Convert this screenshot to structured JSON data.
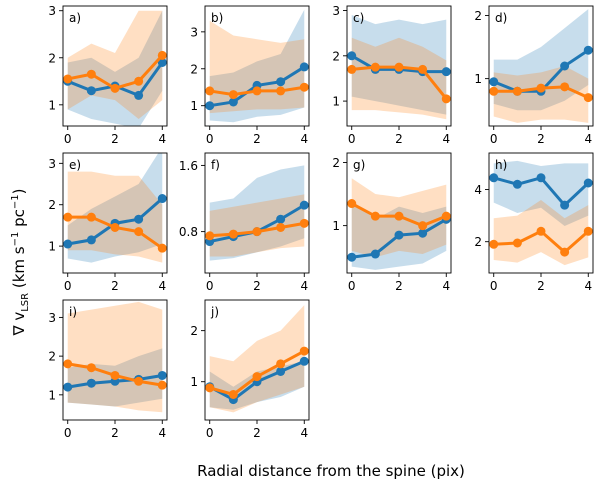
{
  "figure": {
    "ylabel_main": "∇ v",
    "ylabel_sub": "LSR",
    "ylabel_units": " (km s",
    "ylabel_exp1": "−1",
    "ylabel_mid": " pc",
    "ylabel_exp2": "−1",
    "ylabel_end": ")",
    "xlabel": "Radial distance from the spine (pix)",
    "colors": {
      "blue": "#1f77b4",
      "orange": "#ff7f0e"
    }
  },
  "chart_data": [
    {
      "panel": "a)",
      "type": "line",
      "x": [
        0,
        1,
        2,
        3,
        4
      ],
      "xticks": [
        0,
        2,
        4
      ],
      "ylim": [
        0.55,
        3.1
      ],
      "yticks": [
        1,
        2,
        3
      ],
      "series": [
        {
          "color": "blue",
          "values": [
            1.5,
            1.3,
            1.4,
            1.2,
            1.9
          ],
          "band_low": [
            0.9,
            0.7,
            0.6,
            0.5,
            1.3
          ],
          "band_high": [
            1.9,
            2.0,
            1.7,
            2.0,
            3.0
          ]
        },
        {
          "color": "orange",
          "values": [
            1.55,
            1.65,
            1.35,
            1.5,
            2.05
          ],
          "band_low": [
            0.9,
            1.2,
            1.1,
            0.7,
            1.1
          ],
          "band_high": [
            2.0,
            2.3,
            2.1,
            3.0,
            3.0
          ]
        }
      ]
    },
    {
      "panel": "b)",
      "type": "line",
      "x": [
        0,
        1,
        2,
        3,
        4
      ],
      "xticks": [
        0,
        2,
        4
      ],
      "ylim": [
        0.45,
        3.7
      ],
      "yticks": [
        1,
        2,
        3
      ],
      "series": [
        {
          "color": "blue",
          "values": [
            1.0,
            1.1,
            1.55,
            1.65,
            2.05
          ],
          "band_low": [
            0.6,
            0.55,
            0.7,
            0.75,
            0.95
          ],
          "band_high": [
            1.8,
            1.9,
            2.2,
            2.4,
            3.6
          ]
        },
        {
          "color": "orange",
          "values": [
            1.4,
            1.3,
            1.4,
            1.4,
            1.5
          ],
          "band_low": [
            0.8,
            0.85,
            0.9,
            0.9,
            0.95
          ],
          "band_high": [
            3.3,
            2.9,
            2.8,
            2.7,
            2.8
          ]
        }
      ]
    },
    {
      "panel": "c)",
      "type": "line",
      "x": [
        0,
        1,
        2,
        3,
        4
      ],
      "xticks": [
        0,
        2,
        4
      ],
      "ylim": [
        0.45,
        3.1
      ],
      "yticks": [
        1,
        2,
        3
      ],
      "series": [
        {
          "color": "blue",
          "values": [
            2.0,
            1.7,
            1.7,
            1.65,
            1.65
          ],
          "band_low": [
            1.1,
            1.0,
            0.9,
            0.8,
            0.7
          ],
          "band_high": [
            2.9,
            2.7,
            2.8,
            2.7,
            2.8
          ]
        },
        {
          "color": "orange",
          "values": [
            1.7,
            1.75,
            1.75,
            1.7,
            1.05
          ],
          "band_low": [
            0.8,
            0.8,
            0.75,
            0.7,
            0.6
          ],
          "band_high": [
            2.4,
            2.2,
            2.4,
            2.2,
            1.9
          ]
        }
      ]
    },
    {
      "panel": "d)",
      "type": "line",
      "x": [
        0,
        1,
        2,
        3,
        4
      ],
      "xticks": [
        0,
        2,
        4
      ],
      "ylim": [
        0.25,
        2.15
      ],
      "yticks": [
        1,
        2
      ],
      "series": [
        {
          "color": "blue",
          "values": [
            0.95,
            0.8,
            0.8,
            1.2,
            1.45
          ],
          "band_low": [
            0.6,
            0.5,
            0.5,
            0.65,
            0.9
          ],
          "band_high": [
            1.3,
            1.3,
            1.5,
            1.8,
            2.1
          ]
        },
        {
          "color": "orange",
          "values": [
            0.8,
            0.8,
            0.85,
            0.87,
            0.7
          ],
          "band_low": [
            0.4,
            0.3,
            0.35,
            0.35,
            0.3
          ],
          "band_high": [
            1.1,
            1.05,
            1.1,
            1.2,
            1.0
          ]
        }
      ]
    },
    {
      "panel": "e)",
      "type": "line",
      "x": [
        0,
        1,
        2,
        3,
        4
      ],
      "xticks": [
        0,
        2,
        4
      ],
      "ylim": [
        0.35,
        3.25
      ],
      "yticks": [
        1,
        2,
        3
      ],
      "series": [
        {
          "color": "blue",
          "values": [
            1.05,
            1.15,
            1.55,
            1.65,
            2.15
          ],
          "band_low": [
            0.7,
            0.6,
            0.75,
            0.85,
            1.05
          ],
          "band_high": [
            1.5,
            1.9,
            2.2,
            2.5,
            3.4
          ]
        },
        {
          "color": "orange",
          "values": [
            1.7,
            1.7,
            1.45,
            1.35,
            0.95
          ],
          "band_low": [
            0.9,
            0.9,
            0.8,
            0.75,
            0.6
          ],
          "band_high": [
            2.8,
            2.8,
            2.7,
            2.7,
            2.0
          ]
        }
      ]
    },
    {
      "panel": "f)",
      "type": "line",
      "x": [
        0,
        1,
        2,
        3,
        4
      ],
      "xticks": [
        0,
        2,
        4
      ],
      "ylim": [
        0.3,
        1.75
      ],
      "yticks": [
        0.8,
        1.6
      ],
      "series": [
        {
          "color": "blue",
          "values": [
            0.68,
            0.74,
            0.8,
            0.95,
            1.12
          ],
          "band_low": [
            0.45,
            0.48,
            0.55,
            0.62,
            0.72
          ],
          "band_high": [
            1.15,
            1.2,
            1.45,
            1.55,
            1.6
          ]
        },
        {
          "color": "orange",
          "values": [
            0.75,
            0.77,
            0.8,
            0.85,
            0.9
          ],
          "band_low": [
            0.5,
            0.5,
            0.55,
            0.6,
            0.62
          ],
          "band_high": [
            1.05,
            1.1,
            1.15,
            1.2,
            1.25
          ]
        }
      ]
    },
    {
      "panel": "g)",
      "type": "line",
      "x": [
        0,
        1,
        2,
        3,
        4
      ],
      "xticks": [
        0,
        2,
        4
      ],
      "ylim": [
        0.25,
        2.15
      ],
      "yticks": [
        1,
        2
      ],
      "series": [
        {
          "color": "blue",
          "values": [
            0.5,
            0.55,
            0.85,
            0.88,
            1.1
          ],
          "band_low": [
            0.35,
            0.3,
            0.35,
            0.4,
            0.6
          ],
          "band_high": [
            1.4,
            1.1,
            1.3,
            1.2,
            1.3
          ]
        },
        {
          "color": "orange",
          "values": [
            1.35,
            1.15,
            1.15,
            1.0,
            1.15
          ],
          "band_low": [
            0.6,
            0.5,
            0.6,
            0.55,
            0.7
          ],
          "band_high": [
            1.75,
            1.5,
            1.45,
            1.55,
            1.65
          ]
        }
      ]
    },
    {
      "panel": "h)",
      "type": "line",
      "x": [
        0,
        1,
        2,
        3,
        4
      ],
      "xticks": [
        0,
        2,
        4
      ],
      "ylim": [
        0.8,
        5.4
      ],
      "yticks": [
        2,
        4
      ],
      "series": [
        {
          "color": "blue",
          "values": [
            4.45,
            4.2,
            4.45,
            3.4,
            4.25
          ],
          "band_low": [
            3.5,
            3.1,
            3.3,
            2.6,
            3.0
          ],
          "band_high": [
            5.0,
            5.1,
            4.9,
            5.0,
            5.0
          ]
        },
        {
          "color": "orange",
          "values": [
            1.9,
            1.95,
            2.4,
            1.6,
            2.4
          ],
          "band_low": [
            1.3,
            1.2,
            1.6,
            1.1,
            1.4
          ],
          "band_high": [
            2.9,
            3.0,
            3.6,
            2.9,
            3.4
          ]
        }
      ]
    },
    {
      "panel": "i)",
      "type": "line",
      "x": [
        0,
        1,
        2,
        3,
        4
      ],
      "xticks": [
        0,
        2,
        4
      ],
      "ylim": [
        0.35,
        3.45
      ],
      "yticks": [
        1,
        2,
        3
      ],
      "series": [
        {
          "color": "blue",
          "values": [
            1.2,
            1.3,
            1.35,
            1.4,
            1.5
          ],
          "band_low": [
            0.8,
            0.75,
            0.7,
            0.8,
            0.9
          ],
          "band_high": [
            1.7,
            1.8,
            1.75,
            2.0,
            2.2
          ]
        },
        {
          "color": "orange",
          "values": [
            1.8,
            1.7,
            1.5,
            1.35,
            1.25
          ],
          "band_low": [
            0.8,
            0.75,
            0.7,
            0.6,
            0.55
          ],
          "band_high": [
            3.1,
            3.2,
            3.3,
            3.4,
            3.2
          ]
        }
      ]
    },
    {
      "panel": "j)",
      "type": "line",
      "x": [
        0,
        1,
        2,
        3,
        4
      ],
      "xticks": [
        0,
        2,
        4
      ],
      "ylim": [
        0.25,
        2.6
      ],
      "yticks": [
        1,
        2
      ],
      "series": [
        {
          "color": "blue",
          "values": [
            0.9,
            0.65,
            1.0,
            1.2,
            1.4
          ],
          "band_low": [
            0.5,
            0.45,
            0.6,
            0.7,
            0.9
          ],
          "band_high": [
            1.2,
            0.9,
            1.2,
            1.3,
            1.4
          ]
        },
        {
          "color": "orange",
          "values": [
            0.88,
            0.75,
            1.1,
            1.35,
            1.6
          ],
          "band_low": [
            0.5,
            0.4,
            0.6,
            0.75,
            0.9
          ],
          "band_high": [
            1.5,
            1.4,
            1.8,
            2.0,
            2.5
          ]
        }
      ]
    }
  ]
}
